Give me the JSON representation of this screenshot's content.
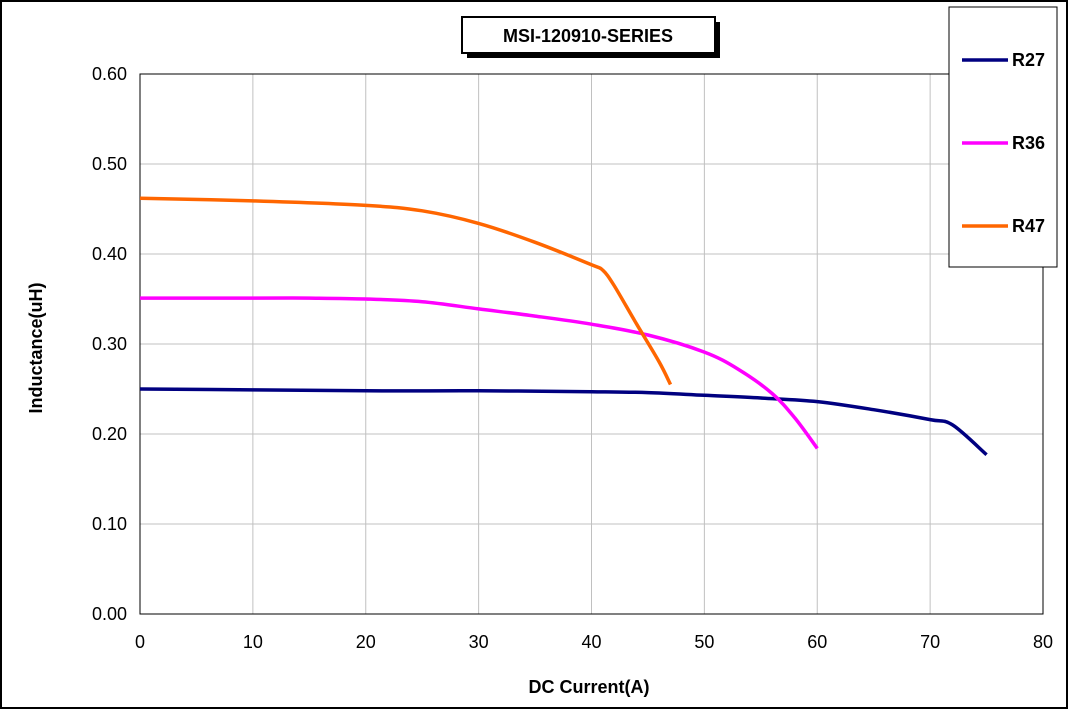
{
  "chart_data": {
    "type": "line",
    "title": "MSI-120910-SERIES",
    "xlabel": "DC Current(A)",
    "ylabel": "Inductance(uH)",
    "xlim": [
      0,
      80
    ],
    "ylim": [
      0,
      0.6
    ],
    "x_ticks": [
      "0",
      "10",
      "20",
      "30",
      "40",
      "50",
      "60",
      "70",
      "80"
    ],
    "y_ticks": [
      "0.00",
      "0.10",
      "0.20",
      "0.30",
      "0.40",
      "0.50",
      "0.60"
    ],
    "grid": true,
    "legend_position": "right",
    "series": [
      {
        "name": "R27",
        "color": "#000080",
        "points": [
          [
            0,
            0.25
          ],
          [
            10,
            0.249
          ],
          [
            20,
            0.248
          ],
          [
            30,
            0.248
          ],
          [
            40,
            0.247
          ],
          [
            45,
            0.246
          ],
          [
            50,
            0.243
          ],
          [
            55,
            0.24
          ],
          [
            60,
            0.236
          ],
          [
            65,
            0.227
          ],
          [
            70,
            0.216
          ],
          [
            72,
            0.21
          ],
          [
            75,
            0.177
          ]
        ]
      },
      {
        "name": "R36",
        "color": "#FF00FF",
        "points": [
          [
            0,
            0.351
          ],
          [
            10,
            0.351
          ],
          [
            15,
            0.351
          ],
          [
            20,
            0.35
          ],
          [
            25,
            0.347
          ],
          [
            30,
            0.339
          ],
          [
            35,
            0.331
          ],
          [
            40,
            0.322
          ],
          [
            45,
            0.31
          ],
          [
            50,
            0.291
          ],
          [
            53,
            0.272
          ],
          [
            56,
            0.245
          ],
          [
            58,
            0.218
          ],
          [
            60,
            0.184
          ]
        ]
      },
      {
        "name": "R47",
        "color": "#FF6600",
        "points": [
          [
            0,
            0.462
          ],
          [
            10,
            0.459
          ],
          [
            20,
            0.454
          ],
          [
            25,
            0.448
          ],
          [
            30,
            0.434
          ],
          [
            35,
            0.413
          ],
          [
            40,
            0.388
          ],
          [
            41,
            0.382
          ],
          [
            42,
            0.365
          ],
          [
            44,
            0.322
          ],
          [
            46,
            0.28
          ],
          [
            47,
            0.255
          ]
        ]
      }
    ]
  }
}
